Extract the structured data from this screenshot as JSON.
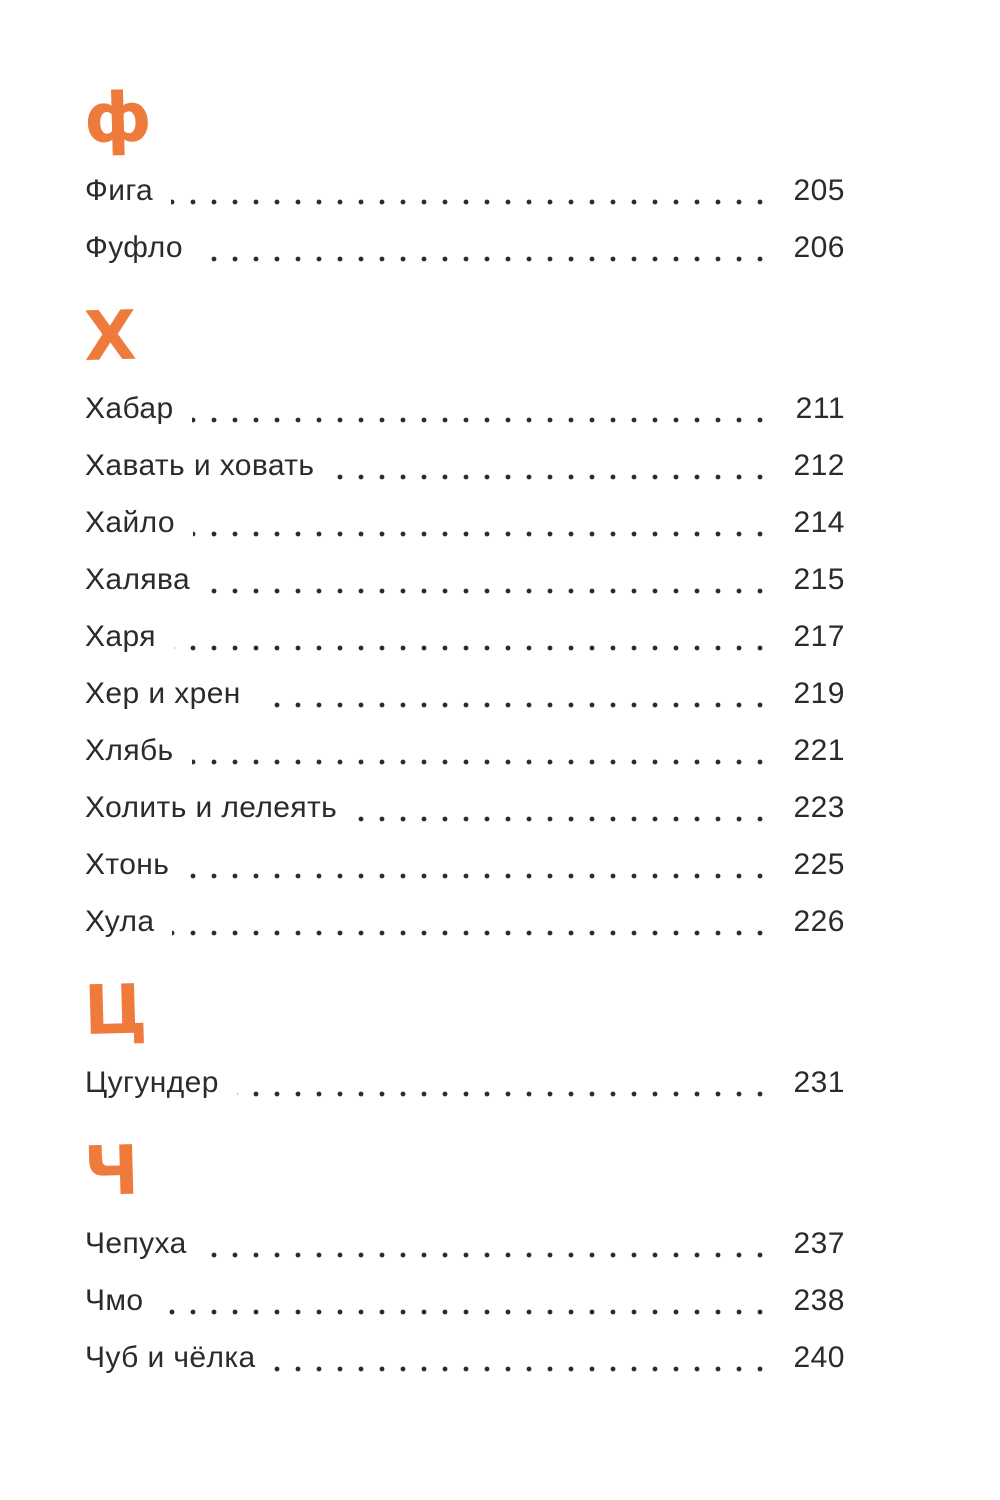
{
  "page": {
    "accent_color": "#EE7A3B",
    "text_color": "#2B2B2B",
    "sections": [
      {
        "letter": "ф",
        "entries": [
          {
            "title": "Фига",
            "page": "205"
          },
          {
            "title": "Фуфло",
            "page": "206"
          }
        ]
      },
      {
        "letter": "Х",
        "entries": [
          {
            "title": "Хабар",
            "page": "211"
          },
          {
            "title": "Хавать и ховать",
            "page": "212"
          },
          {
            "title": "Хайло",
            "page": "214"
          },
          {
            "title": "Халява",
            "page": "215"
          },
          {
            "title": "Харя",
            "page": "217"
          },
          {
            "title": "Хер и хрен",
            "page": "219"
          },
          {
            "title": "Хлябь",
            "page": "221"
          },
          {
            "title": "Холить и лелеять",
            "page": "223"
          },
          {
            "title": "Хтонь",
            "page": "225"
          },
          {
            "title": "Хула",
            "page": "226"
          }
        ]
      },
      {
        "letter": "Ц",
        "entries": [
          {
            "title": "Цугундер",
            "page": "231"
          }
        ]
      },
      {
        "letter": "Ч",
        "entries": [
          {
            "title": "Чепуха",
            "page": "237"
          },
          {
            "title": "Чмо",
            "page": "238"
          },
          {
            "title": "Чуб и чёлка",
            "page": "240"
          }
        ]
      }
    ]
  }
}
